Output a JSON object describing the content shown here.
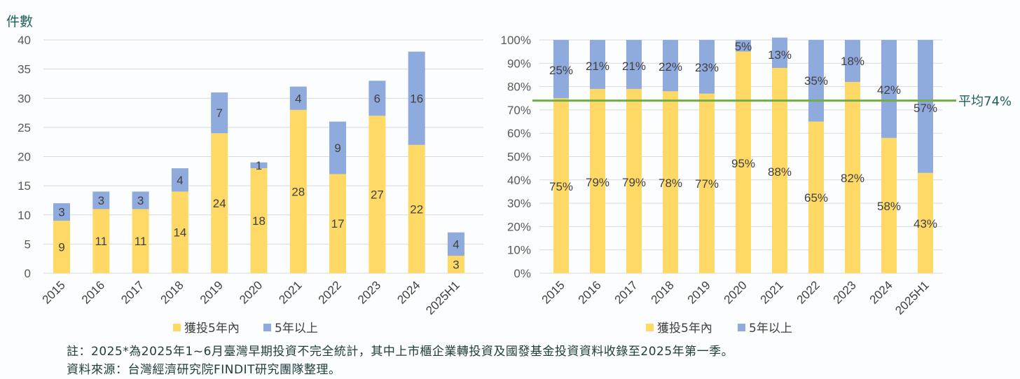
{
  "colors": {
    "recent": "#FFD966",
    "older": "#8FAADC",
    "average": "#70AD47",
    "text": "#404040",
    "grid": "#d9d9d9"
  },
  "chart_data": [
    {
      "type": "bar",
      "stacked": true,
      "title": "",
      "ylabel": "件數",
      "ylim": [
        0,
        40
      ],
      "yticks": [
        0,
        5,
        10,
        15,
        20,
        25,
        30,
        35,
        40
      ],
      "categories": [
        "2015",
        "2016",
        "2017",
        "2018",
        "2019",
        "2020",
        "2021",
        "2022",
        "2023",
        "2024",
        "2025H1"
      ],
      "series": [
        {
          "name": "獲投5年內",
          "values": [
            9,
            11,
            11,
            14,
            24,
            18,
            28,
            17,
            27,
            22,
            3
          ]
        },
        {
          "name": "5年以上",
          "values": [
            3,
            3,
            3,
            4,
            7,
            1,
            4,
            9,
            6,
            16,
            4
          ]
        }
      ],
      "legend": "bottom"
    },
    {
      "type": "bar",
      "stacked": true,
      "percent": true,
      "ylim": [
        0,
        100
      ],
      "yticks": [
        "0%",
        "10%",
        "20%",
        "30%",
        "40%",
        "50%",
        "60%",
        "70%",
        "80%",
        "90%",
        "100%"
      ],
      "categories": [
        "2015",
        "2016",
        "2017",
        "2018",
        "2019",
        "2020",
        "2021",
        "2022",
        "2023",
        "2024",
        "2025H1"
      ],
      "series": [
        {
          "name": "獲投5年內",
          "values": [
            75,
            79,
            79,
            78,
            77,
            95,
            88,
            65,
            82,
            58,
            43
          ]
        },
        {
          "name": "5年以上",
          "values": [
            25,
            21,
            21,
            22,
            23,
            5,
            13,
            35,
            18,
            42,
            57
          ]
        }
      ],
      "average": {
        "value": 74,
        "label": "平均74%"
      },
      "legend": "bottom"
    }
  ],
  "notes": [
    "註：2025*為2025年1~6月臺灣早期投資不完全統計，其中上市櫃企業轉投資及國發基金投資資料收錄至2025年第一季。",
    "資料來源：台灣經濟研究院FINDIT研究團隊整理。"
  ]
}
